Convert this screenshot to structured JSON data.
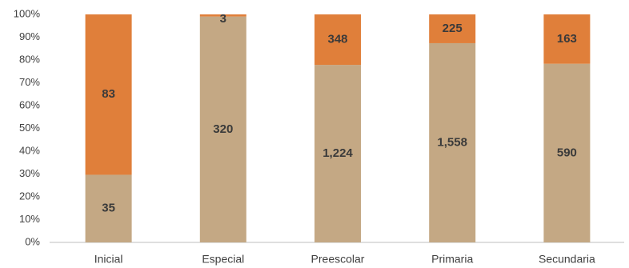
{
  "chart_data": {
    "type": "bar",
    "stacking": "percent",
    "categories": [
      "Inicial",
      "Especial",
      "Preescolar",
      "Primaria",
      "Secundaria"
    ],
    "series": [
      {
        "color": "#c4a884",
        "values": [
          35,
          320,
          1224,
          1558,
          590
        ],
        "value_labels": [
          "35",
          "320",
          "1,224",
          "1,558",
          "590"
        ]
      },
      {
        "color": "#e07f3a",
        "values": [
          83,
          3,
          348,
          225,
          163
        ],
        "value_labels": [
          "83",
          "3",
          "348",
          "225",
          "163"
        ]
      }
    ],
    "ylim": [
      0,
      100
    ],
    "yticks": [
      {
        "value": 0,
        "label": "0%"
      },
      {
        "value": 10,
        "label": "10%"
      },
      {
        "value": 20,
        "label": "20%"
      },
      {
        "value": 30,
        "label": "30%"
      },
      {
        "value": 40,
        "label": "40%"
      },
      {
        "value": 50,
        "label": "50%"
      },
      {
        "value": 60,
        "label": "60%"
      },
      {
        "value": 70,
        "label": "70%"
      },
      {
        "value": 80,
        "label": "80%"
      },
      {
        "value": 90,
        "label": "90%"
      },
      {
        "value": 100,
        "label": "100%"
      }
    ],
    "grid": false
  }
}
